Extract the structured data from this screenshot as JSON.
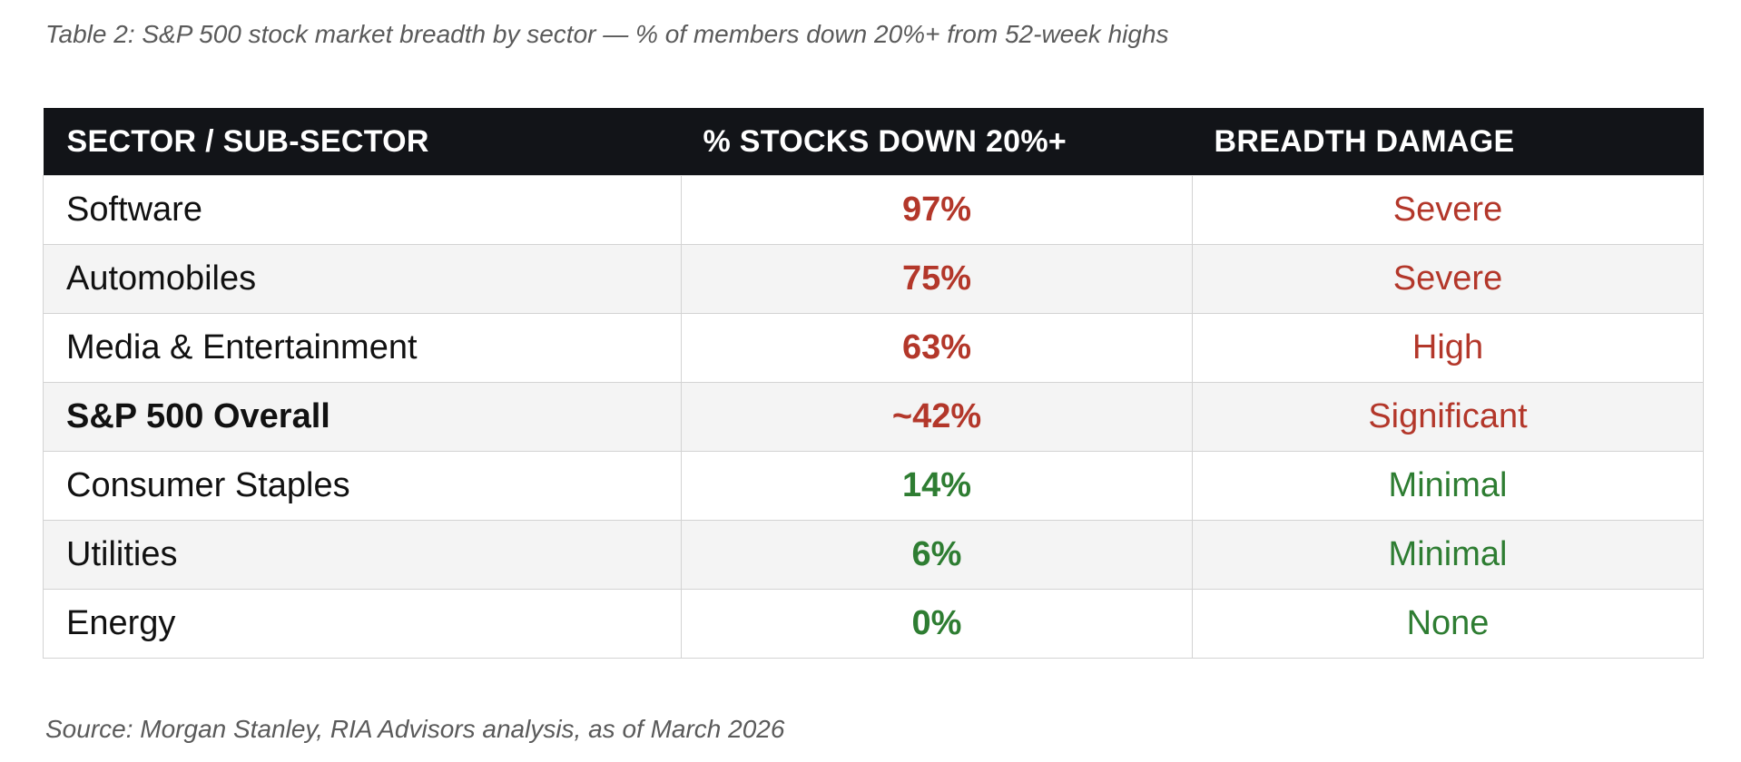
{
  "caption": "Table 2: S&P 500 stock market breadth by sector — % of members down 20%+ from 52-week highs",
  "source": "Source: Morgan Stanley, RIA Advisors analysis, as of March 2026",
  "colors": {
    "header_bg": "#121418",
    "negative": "#b3372a",
    "positive": "#2e7d32",
    "alt_row": "#f4f4f4"
  },
  "table": {
    "headers": [
      "SECTOR / SUB-SECTOR",
      "% STOCKS DOWN 20%+",
      "BREADTH DAMAGE"
    ],
    "rows": [
      {
        "sector": "Software",
        "pct": "97%",
        "damage": "Severe",
        "tone": "neg"
      },
      {
        "sector": "Automobiles",
        "pct": "75%",
        "damage": "Severe",
        "tone": "neg"
      },
      {
        "sector": "Media & Entertainment",
        "pct": "63%",
        "damage": "High",
        "tone": "neg"
      },
      {
        "sector": "S&P 500 Overall",
        "pct": "~42%",
        "damage": "Significant",
        "tone": "neg"
      },
      {
        "sector": "Consumer Staples",
        "pct": "14%",
        "damage": "Minimal",
        "tone": "pos"
      },
      {
        "sector": "Utilities",
        "pct": "6%",
        "damage": "Minimal",
        "tone": "pos"
      },
      {
        "sector": "Energy",
        "pct": "0%",
        "damage": "None",
        "tone": "pos"
      }
    ]
  }
}
